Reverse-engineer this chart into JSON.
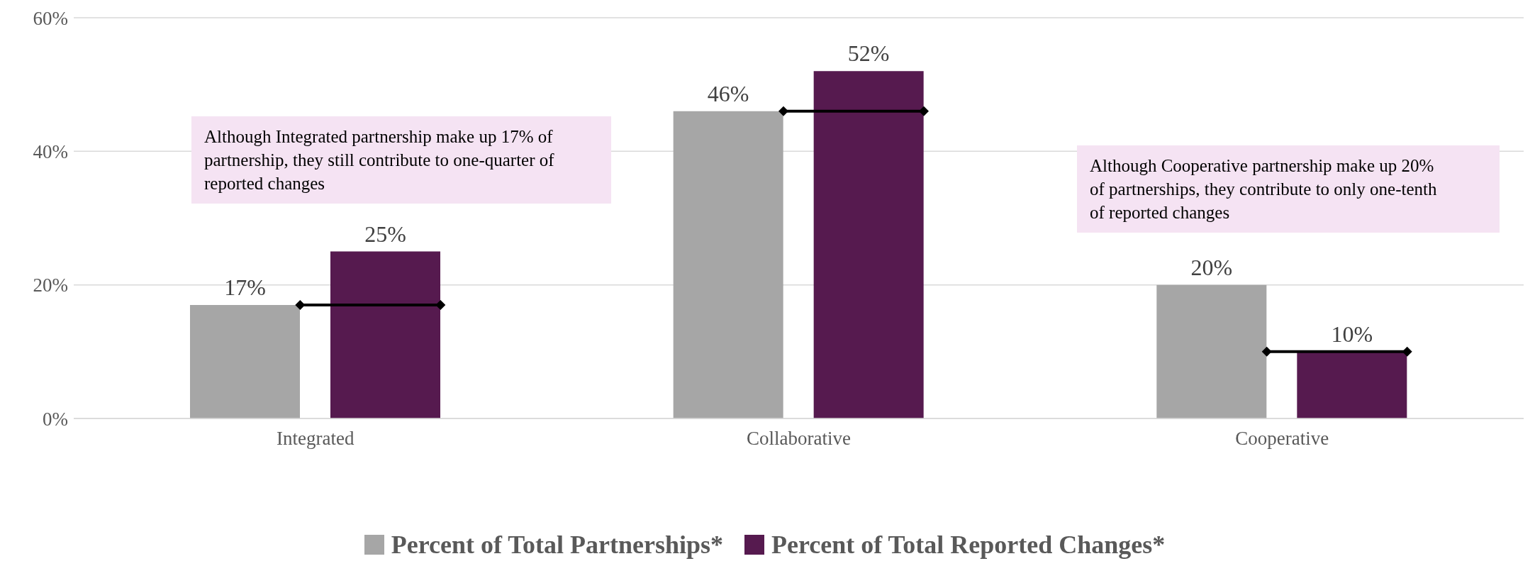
{
  "chart_data": {
    "type": "bar",
    "categories": [
      "Integrated",
      "Collaborative",
      "Cooperative"
    ],
    "series": [
      {
        "name": "Percent of Total Partnerships*",
        "color": "#a6a6a6",
        "values": [
          17,
          46,
          20
        ],
        "value_labels": [
          "17%",
          "46%",
          "20%"
        ]
      },
      {
        "name": "Percent of Total Reported Changes*",
        "color": "#561a4f",
        "values": [
          25,
          52,
          10
        ],
        "value_labels": [
          "25%",
          "52%",
          "10%"
        ]
      }
    ],
    "ylim": [
      0,
      60
    ],
    "yticks": [
      {
        "value": 0,
        "label": "0%"
      },
      {
        "value": 20,
        "label": "20%"
      },
      {
        "value": 40,
        "label": "40%"
      },
      {
        "value": 60,
        "label": "60%"
      }
    ],
    "grid": "y",
    "legend": "bottom",
    "annotations": [
      "Although Integrated partnership make up 17% of partnership, they still contribute to one-quarter of reported changes",
      "Although Cooperative partnership make up 20% of partnerships, they contribute to only one-tenth of reported changes"
    ]
  }
}
